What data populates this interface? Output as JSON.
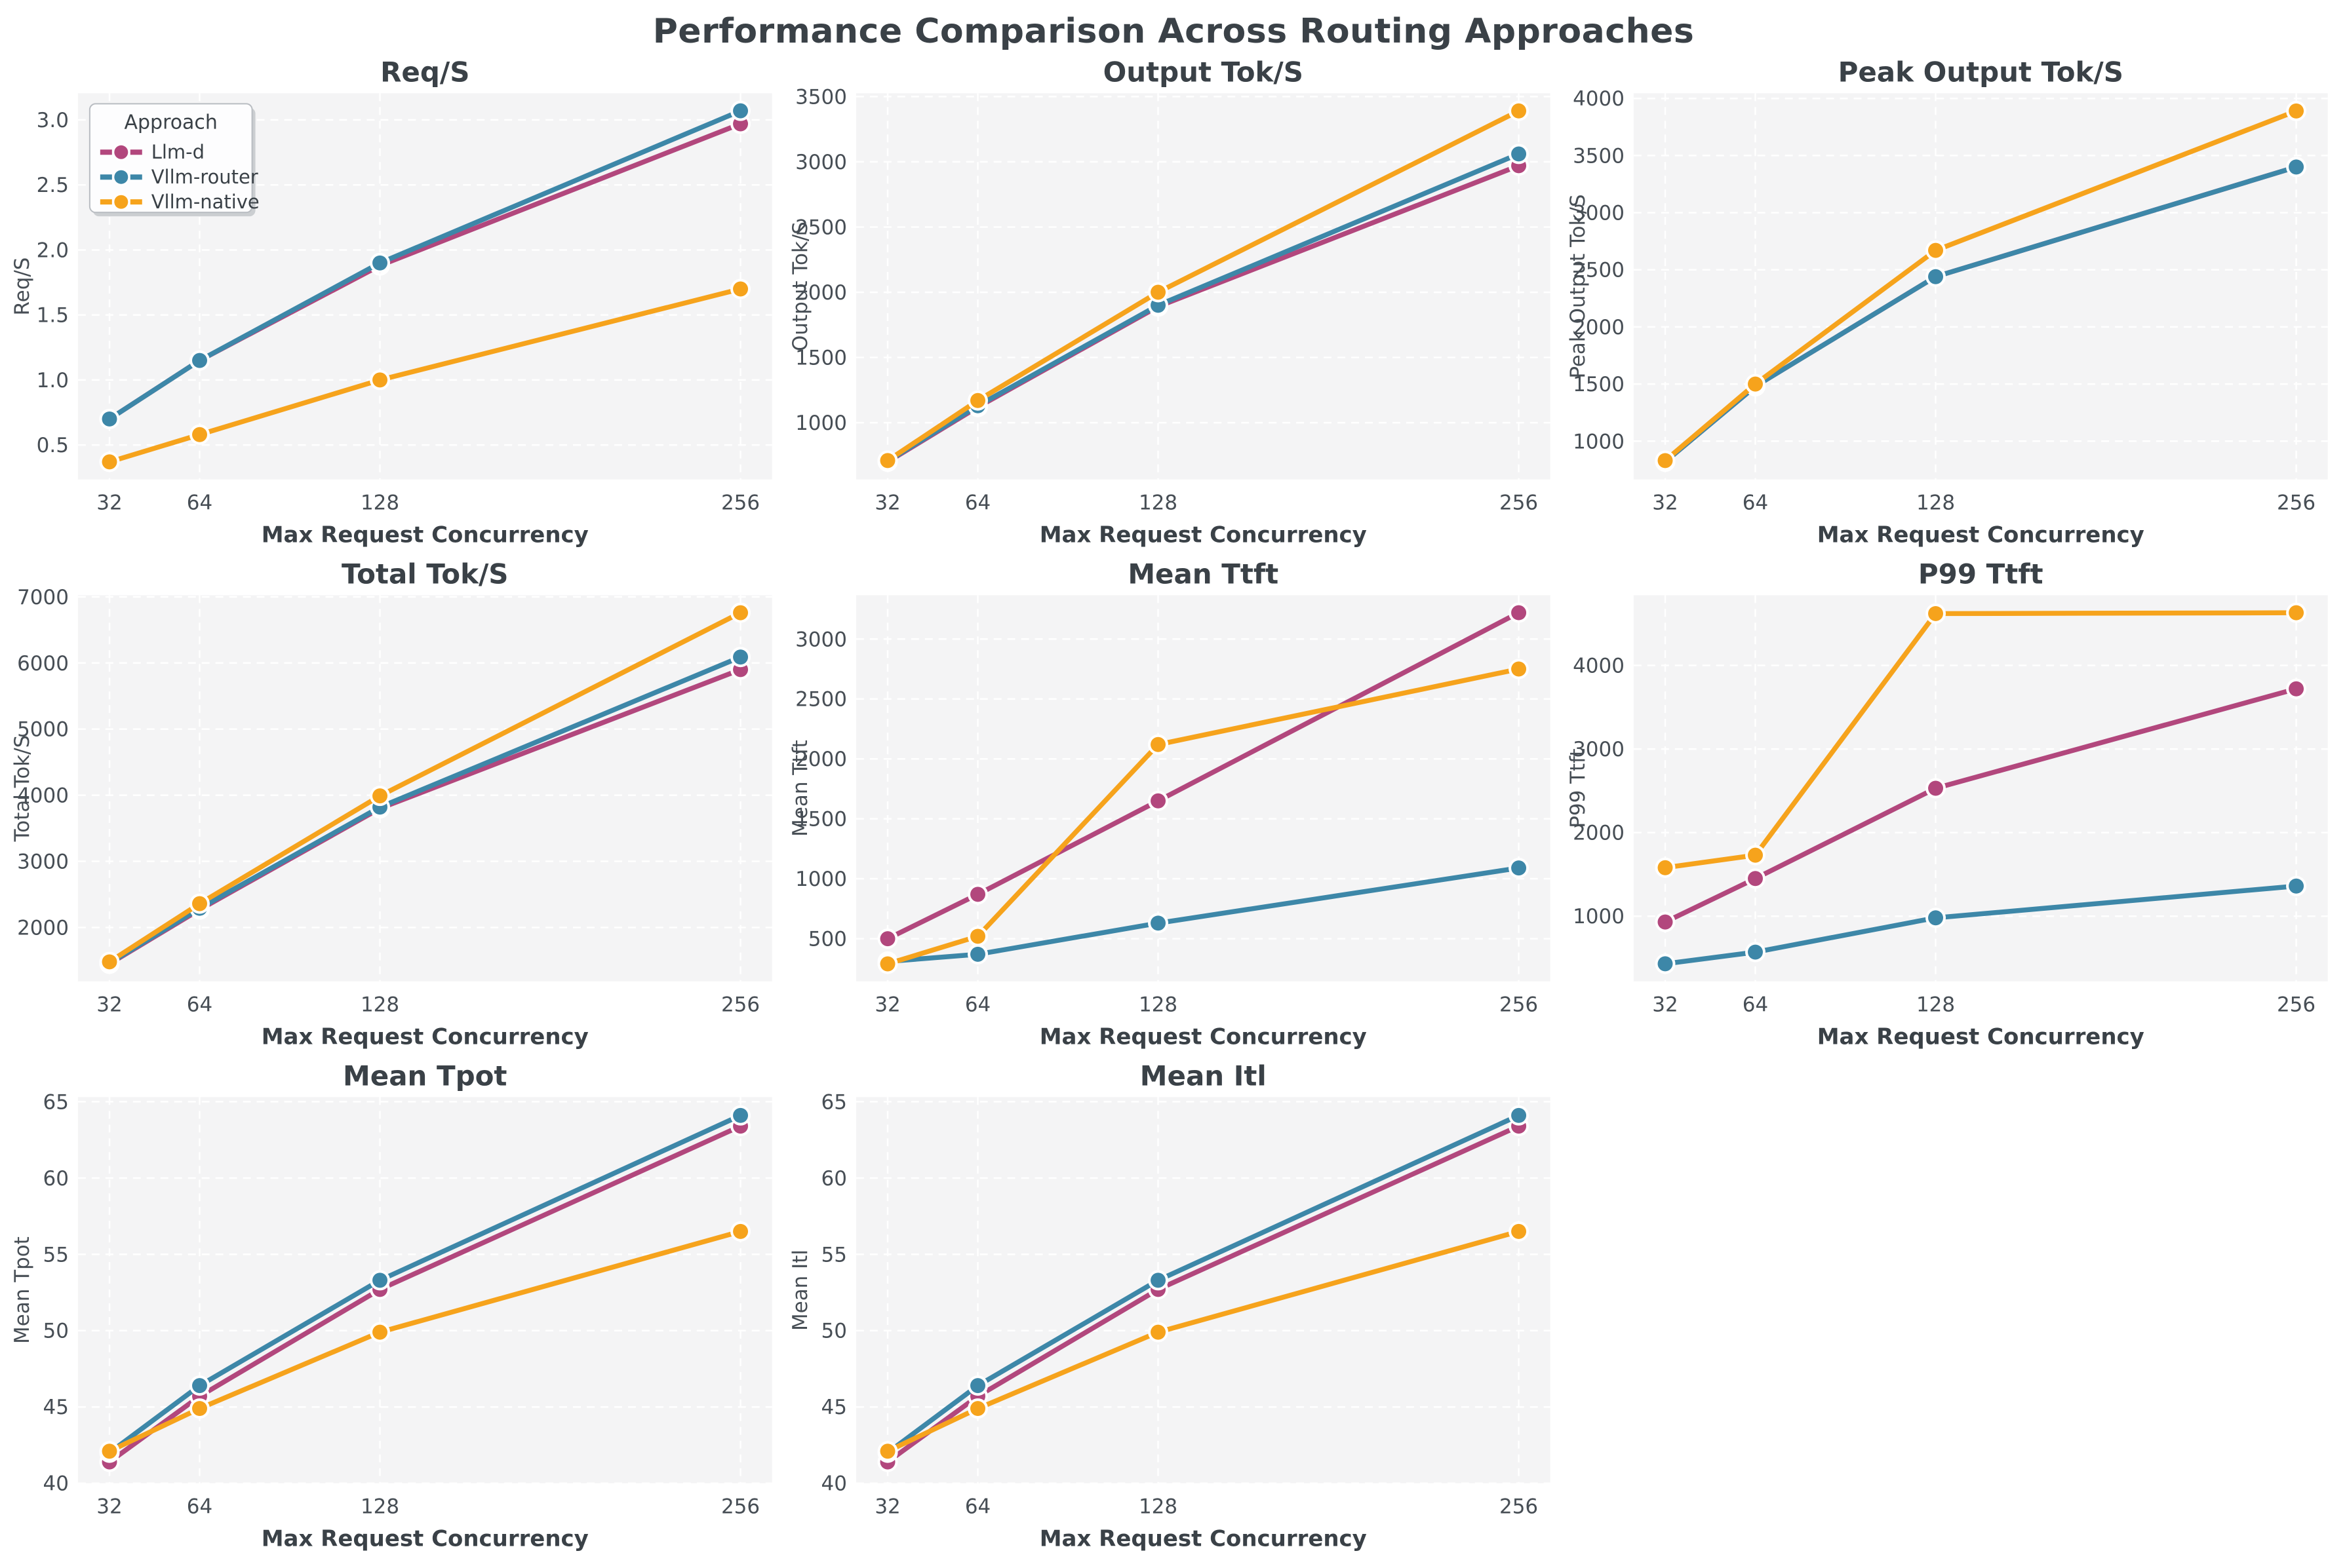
{
  "title": "Performance Comparison Across Routing Approaches",
  "xlabel": "Max Request Concurrency",
  "x_tick_labels": [
    "32",
    "64",
    "128",
    "256"
  ],
  "legend": {
    "title": "Approach",
    "entries": [
      {
        "label": "Llm-d",
        "color": "#b2477d"
      },
      {
        "label": "Vllm-router",
        "color": "#3d87a8"
      },
      {
        "label": "Vllm-native",
        "color": "#f6a31c"
      }
    ]
  },
  "style": {
    "fig_bg": "#ffffff",
    "plot_bg": "#f4f4f5",
    "grid_color": "#ffffff",
    "text_dark": "#3a4147",
    "text_tick": "#474e55",
    "legend_bg": "#fdfdfe",
    "legend_border": "#b9bdc2"
  },
  "chart_data": [
    {
      "type": "line",
      "title": "Req/S",
      "ylabel": "Req/S",
      "legend": true,
      "x": [
        32,
        64,
        128,
        256
      ],
      "xlim": [
        20.8,
        267.2
      ],
      "ylim": [
        0.235,
        3.205
      ],
      "yticks": [
        0.5,
        1.0,
        1.5,
        2.0,
        2.5,
        3.0
      ],
      "ytick_decimals": 1,
      "series": [
        {
          "name": "Llm-d",
          "values": [
            0.7,
            1.15,
            1.88,
            2.97
          ]
        },
        {
          "name": "Vllm-router",
          "values": [
            0.7,
            1.15,
            1.9,
            3.07
          ]
        },
        {
          "name": "Vllm-native",
          "values": [
            0.37,
            0.58,
            1.0,
            1.7
          ]
        }
      ]
    },
    {
      "type": "line",
      "title": "Output Tok/S",
      "ylabel": "Output Tok/S",
      "legend": false,
      "x": [
        32,
        64,
        128,
        256
      ],
      "xlim": [
        20.8,
        267.2
      ],
      "ylim": [
        565,
        3525
      ],
      "yticks": [
        1000,
        1500,
        2000,
        2500,
        3000,
        3500
      ],
      "ytick_decimals": 0,
      "series": [
        {
          "name": "Llm-d",
          "values": [
            700,
            1120,
            1890,
            2970
          ]
        },
        {
          "name": "Vllm-router",
          "values": [
            705,
            1130,
            1900,
            3060
          ]
        },
        {
          "name": "Vllm-native",
          "values": [
            710,
            1170,
            2000,
            3390
          ]
        }
      ]
    },
    {
      "type": "line",
      "title": "Peak Output Tok/S",
      "ylabel": "Peak Output Tok/S",
      "legend": false,
      "x": [
        32,
        64,
        128,
        256
      ],
      "xlim": [
        20.8,
        267.2
      ],
      "ylim": [
        665,
        4045
      ],
      "yticks": [
        1000,
        1500,
        2000,
        2500,
        3000,
        3500,
        4000
      ],
      "ytick_decimals": 0,
      "series": [
        {
          "name": "Llm-d",
          "values": [
            820,
            1480,
            2440,
            3400
          ]
        },
        {
          "name": "Vllm-router",
          "values": [
            820,
            1480,
            2440,
            3400
          ]
        },
        {
          "name": "Vllm-native",
          "values": [
            830,
            1500,
            2670,
            3890
          ]
        }
      ]
    },
    {
      "type": "line",
      "title": "Total Tok/S",
      "ylabel": "Total Tok/S",
      "legend": false,
      "x": [
        32,
        64,
        128,
        256
      ],
      "xlim": [
        20.8,
        267.2
      ],
      "ylim": [
        1185,
        7025
      ],
      "yticks": [
        2000,
        3000,
        4000,
        5000,
        6000,
        7000
      ],
      "ytick_decimals": 0,
      "series": [
        {
          "name": "Llm-d",
          "values": [
            1450,
            2270,
            3800,
            5900
          ]
        },
        {
          "name": "Vllm-router",
          "values": [
            1460,
            2290,
            3820,
            6090
          ]
        },
        {
          "name": "Vllm-native",
          "values": [
            1480,
            2360,
            3990,
            6760
          ]
        }
      ]
    },
    {
      "type": "line",
      "title": "Mean Ttft",
      "ylabel": "Mean Ttft",
      "legend": false,
      "x": [
        32,
        64,
        128,
        256
      ],
      "xlim": [
        20.8,
        267.2
      ],
      "ylim": [
        144,
        3366
      ],
      "yticks": [
        500,
        1000,
        1500,
        2000,
        2500,
        3000
      ],
      "ytick_decimals": 0,
      "series": [
        {
          "name": "Llm-d",
          "values": [
            500,
            870,
            1650,
            3220
          ]
        },
        {
          "name": "Vllm-router",
          "values": [
            310,
            370,
            630,
            1090
          ]
        },
        {
          "name": "Vllm-native",
          "values": [
            290,
            520,
            2120,
            2750
          ]
        }
      ]
    },
    {
      "type": "line",
      "title": "P99 Ttft",
      "ylabel": "P99 Ttft",
      "legend": false,
      "x": [
        32,
        64,
        128,
        256
      ],
      "xlim": [
        20.8,
        267.2
      ],
      "ylim": [
        220,
        4840
      ],
      "yticks": [
        1000,
        2000,
        3000,
        4000
      ],
      "ytick_decimals": 0,
      "series": [
        {
          "name": "Llm-d",
          "values": [
            930,
            1450,
            2530,
            3720
          ]
        },
        {
          "name": "Vllm-router",
          "values": [
            430,
            570,
            980,
            1360
          ]
        },
        {
          "name": "Vllm-native",
          "values": [
            1580,
            1730,
            4620,
            4630
          ]
        }
      ]
    },
    {
      "type": "line",
      "title": "Mean Tpot",
      "ylabel": "Mean Tpot",
      "legend": false,
      "x": [
        32,
        64,
        128,
        256
      ],
      "xlim": [
        20.8,
        267.2
      ],
      "ylim": [
        40.0,
        65.3
      ],
      "yticks": [
        40,
        45,
        50,
        55,
        60,
        65
      ],
      "ytick_decimals": 0,
      "series": [
        {
          "name": "Llm-d",
          "values": [
            41.4,
            45.7,
            52.7,
            63.4
          ]
        },
        {
          "name": "Vllm-router",
          "values": [
            42.0,
            46.4,
            53.3,
            64.1
          ]
        },
        {
          "name": "Vllm-native",
          "values": [
            42.1,
            44.9,
            49.9,
            56.5
          ]
        }
      ]
    },
    {
      "type": "line",
      "title": "Mean Itl",
      "ylabel": "Mean Itl",
      "legend": false,
      "x": [
        32,
        64,
        128,
        256
      ],
      "xlim": [
        20.8,
        267.2
      ],
      "ylim": [
        40.0,
        65.3
      ],
      "yticks": [
        40,
        45,
        50,
        55,
        60,
        65
      ],
      "ytick_decimals": 0,
      "series": [
        {
          "name": "Llm-d",
          "values": [
            41.4,
            45.7,
            52.7,
            63.4
          ]
        },
        {
          "name": "Vllm-router",
          "values": [
            42.0,
            46.4,
            53.3,
            64.1
          ]
        },
        {
          "name": "Vllm-native",
          "values": [
            42.1,
            44.9,
            49.9,
            56.5
          ]
        }
      ]
    }
  ]
}
